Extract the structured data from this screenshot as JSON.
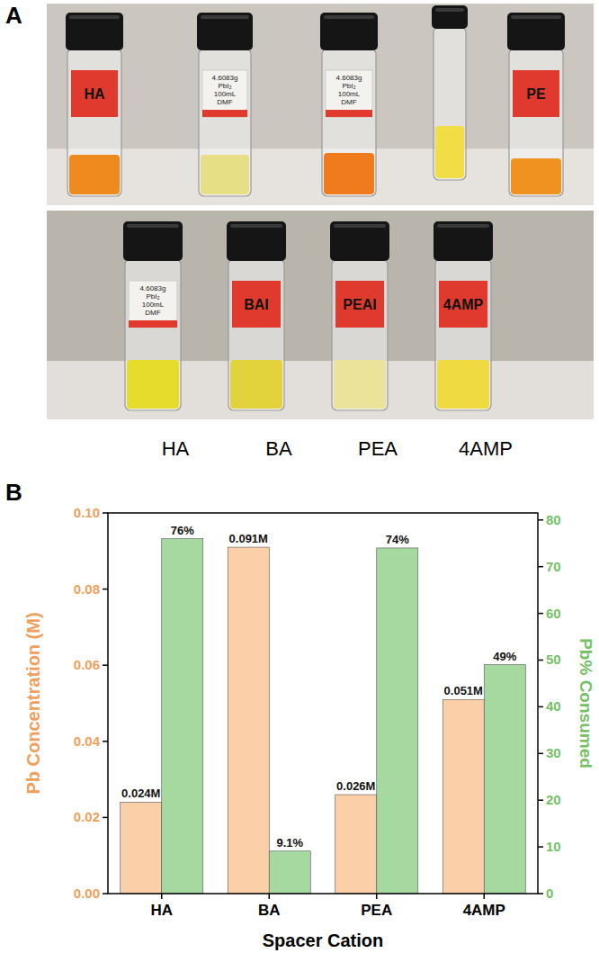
{
  "panel_labels": [
    "A",
    "B"
  ],
  "panel_a": {
    "captions": [
      "HA",
      "BA",
      "PEA",
      "4AMP"
    ],
    "vial_labels_top": [
      "HA",
      "4.6083g PbI₂ 100mL DMF",
      "4.6083g PbI₂ 100mL DMF",
      "PE"
    ],
    "vial_labels_bottom": [
      "4.6083g PbI₂ 100mL DMF",
      "BAI",
      "PEAI",
      "4AMP"
    ]
  },
  "chart_data": {
    "type": "bar",
    "x_label": "Spacer Cation",
    "y_label": "Pb Concentration (M)",
    "y2_label": "Pb% Consumed",
    "categories": [
      "HA",
      "BA",
      "PEA",
      "4AMP"
    ],
    "series": [
      {
        "color": "#fbcfa8",
        "values": [
          0.024,
          0.091,
          0.026,
          0.051
        ],
        "value_labels": [
          "0.024M",
          "0.091M",
          "0.026M",
          "0.051M"
        ]
      },
      {
        "color": "#a6d9a0",
        "axis": "y2",
        "values": [
          76,
          9.1,
          74,
          49
        ],
        "value_labels": [
          "76%",
          "9.1%",
          "74%",
          "49%"
        ]
      }
    ],
    "ylim": [
      0,
      0.1
    ],
    "yticks": [
      {
        "value": 0,
        "label": "0.00"
      },
      {
        "value": 0.02,
        "label": "0.02"
      },
      {
        "value": 0.04,
        "label": "0.04"
      },
      {
        "value": 0.06,
        "label": "0.06"
      },
      {
        "value": 0.08,
        "label": "0.08"
      },
      {
        "value": 0.1,
        "label": "0.10"
      }
    ],
    "y2lim": [
      0,
      81.5
    ],
    "y2ticks": [
      0,
      10,
      20,
      30,
      40,
      50,
      60,
      70,
      80
    ],
    "data_labels": true,
    "grid": false
  }
}
